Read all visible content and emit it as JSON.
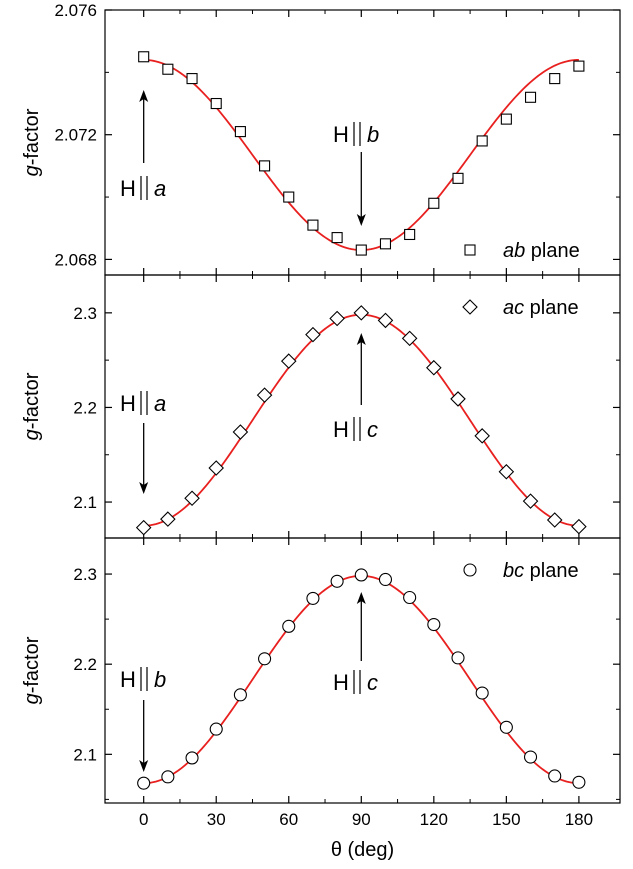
{
  "chart_data": [
    {
      "type": "line",
      "panel": "top",
      "ylabel_italic": "g",
      "ylabel_rest": "-factor",
      "ylim": [
        2.0675,
        2.076
      ],
      "yticks": [
        2.068,
        2.072,
        2.076
      ],
      "ytick_labels": [
        "2.068",
        "2.072",
        "2.076"
      ],
      "xlim": [
        -16,
        197
      ],
      "series": [
        {
          "name": "ab plane",
          "marker": "square",
          "x": [
            0,
            10,
            20,
            30,
            40,
            50,
            60,
            70,
            80,
            90,
            100,
            110,
            120,
            130,
            140,
            150,
            160,
            170,
            180
          ],
          "y": [
            2.0745,
            2.0741,
            2.0738,
            2.073,
            2.0721,
            2.071,
            2.07,
            2.0691,
            2.0687,
            2.0683,
            2.0685,
            2.0688,
            2.0698,
            2.0706,
            2.0718,
            2.0725,
            2.0732,
            2.0738,
            2.0742
          ]
        }
      ],
      "fit": {
        "color": "#e8201f",
        "min": 2.0683,
        "max": 2.0744,
        "peak_angle": 0
      },
      "legend": {
        "label_italic": "ab",
        "label_rest": " plane"
      },
      "annotations": [
        {
          "prefix": "H",
          "axis": "a",
          "x": 0,
          "direction": "up"
        },
        {
          "prefix": "H",
          "axis": "b",
          "x": 90,
          "direction": "down"
        }
      ]
    },
    {
      "type": "line",
      "panel": "middle",
      "ylabel_italic": "g",
      "ylabel_rest": "-factor",
      "ylim": [
        2.062,
        2.34
      ],
      "yticks": [
        2.1,
        2.2,
        2.3
      ],
      "ytick_labels": [
        "2.1",
        "2.2",
        "2.3"
      ],
      "xlim": [
        -16,
        197
      ],
      "series": [
        {
          "name": "ac plane",
          "marker": "diamond",
          "x": [
            0,
            10,
            20,
            30,
            40,
            50,
            60,
            70,
            80,
            90,
            100,
            110,
            120,
            130,
            140,
            150,
            160,
            170,
            180
          ],
          "y": [
            2.073,
            2.082,
            2.104,
            2.136,
            2.174,
            2.213,
            2.249,
            2.277,
            2.294,
            2.3,
            2.292,
            2.273,
            2.242,
            2.209,
            2.17,
            2.132,
            2.101,
            2.081,
            2.074
          ]
        }
      ],
      "fit": {
        "color": "#e8201f",
        "min": 2.075,
        "max": 2.298,
        "peak_angle": 90
      },
      "legend": {
        "label_italic": "ac",
        "label_rest": " plane"
      },
      "annotations": [
        {
          "prefix": "H",
          "axis": "a",
          "x": 0,
          "direction": "down"
        },
        {
          "prefix": "H",
          "axis": "c",
          "x": 90,
          "direction": "up"
        }
      ]
    },
    {
      "type": "line",
      "panel": "bottom",
      "ylabel_italic": "g",
      "ylabel_rest": "-factor",
      "ylim": [
        2.046,
        2.34
      ],
      "yticks": [
        2.1,
        2.2,
        2.3
      ],
      "ytick_labels": [
        "2.1",
        "2.2",
        "2.3"
      ],
      "xlim": [
        -16,
        197
      ],
      "xticks": [
        0,
        30,
        60,
        90,
        120,
        150,
        180
      ],
      "xtick_labels": [
        "0",
        "30",
        "60",
        "90",
        "120",
        "150",
        "180"
      ],
      "xlabel": "θ (deg)",
      "series": [
        {
          "name": "bc plane",
          "marker": "circle",
          "x": [
            0,
            10,
            20,
            30,
            40,
            50,
            60,
            70,
            80,
            90,
            100,
            110,
            120,
            130,
            140,
            150,
            160,
            170,
            180
          ],
          "y": [
            2.068,
            2.075,
            2.096,
            2.128,
            2.166,
            2.206,
            2.242,
            2.273,
            2.292,
            2.299,
            2.294,
            2.274,
            2.244,
            2.207,
            2.168,
            2.13,
            2.097,
            2.076,
            2.069
          ]
        }
      ],
      "fit": {
        "color": "#e8201f",
        "min": 2.068,
        "max": 2.298,
        "peak_angle": 90
      },
      "legend": {
        "label_italic": "bc",
        "label_rest": " plane"
      },
      "annotations": [
        {
          "prefix": "H",
          "axis": "b",
          "x": 0,
          "direction": "down"
        },
        {
          "prefix": "H",
          "axis": "c",
          "x": 90,
          "direction": "up"
        }
      ]
    }
  ]
}
